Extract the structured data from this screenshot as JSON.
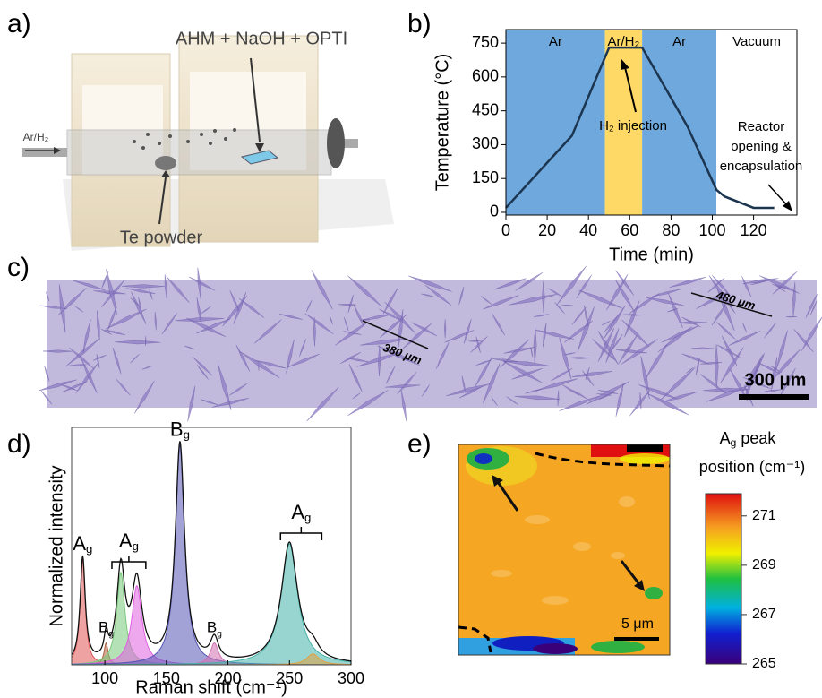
{
  "panel_labels": [
    "a)",
    "b)",
    "c)",
    "d)",
    "e)"
  ],
  "panel_a": {
    "top_label": "AHM + NaOH + OPTI",
    "gas_label": "Ar/H₂",
    "powder_label": "Te powder"
  },
  "panel_c": {
    "scale_labels": [
      "380 μm",
      "480 μm",
      "300 μm"
    ]
  },
  "panel_e": {
    "title_main": "A",
    "title_sub": "g",
    "title_rest": " peak",
    "title_line2": "position (cm⁻¹)",
    "colorbar_lim": [
      265,
      271.9
    ],
    "colorbar_ticks": [
      265,
      267,
      269,
      271
    ],
    "scale_label": "5 μm"
  },
  "chart_data": [
    {
      "type": "line",
      "xlabel": "Time (min)",
      "ylabel": "Temperature (°C)",
      "xlim": [
        0,
        141
      ],
      "ylim": [
        -12,
        810
      ],
      "xticks": [
        0,
        20,
        40,
        60,
        80,
        100,
        120
      ],
      "yticks": [
        0,
        150,
        300,
        450,
        600,
        750
      ],
      "regions": [
        {
          "label": "Ar",
          "start": 0,
          "end": 48,
          "color": "#6fa8dc"
        },
        {
          "label": "Ar/H₂",
          "start": 48,
          "end": 66,
          "color": "#ffd966"
        },
        {
          "label": "Ar",
          "start": 66,
          "end": 102,
          "color": "#6fa8dc"
        },
        {
          "label": "Vacuum",
          "start": 102,
          "end": 141,
          "color": "#ffffff"
        }
      ],
      "series": [
        {
          "color": "#1c3550",
          "x": [
            0,
            32,
            50,
            66,
            88,
            102,
            106,
            120,
            130
          ],
          "values": [
            20,
            340,
            730,
            730,
            380,
            100,
            70,
            20,
            20
          ]
        }
      ],
      "annotation_injection": "H₂ injection",
      "annotation_reactor": [
        "Reactor",
        "opening &",
        "encapsulation"
      ]
    },
    {
      "type": "peaks",
      "xlabel": "Raman shift (cm⁻¹)",
      "ylabel": "Normalized intensity",
      "xlim": [
        73,
        300
      ],
      "ylim": [
        0,
        1.08
      ],
      "xticks": [
        100,
        150,
        200,
        250,
        300
      ],
      "peaks": [
        {
          "center": 82,
          "height": 0.48,
          "width": 2.5,
          "color": "#e05555"
        },
        {
          "center": 101,
          "height": 0.1,
          "width": 2,
          "color": "#b06040"
        },
        {
          "center": 113,
          "height": 0.42,
          "width": 4,
          "color": "#79c97c"
        },
        {
          "center": 126,
          "height": 0.36,
          "width": 5,
          "color": "#e060e0"
        },
        {
          "center": 161,
          "height": 1.0,
          "width": 4.5,
          "color": "#5555b5"
        },
        {
          "center": 189,
          "height": 0.1,
          "width": 4,
          "color": "#d070b0"
        },
        {
          "center": 250,
          "height": 0.55,
          "width": 8,
          "color": "#45b3aa"
        },
        {
          "center": 269,
          "height": 0.05,
          "width": 6,
          "color": "#e0a040"
        }
      ],
      "peak_labels": [
        {
          "main": "A",
          "sub": "g",
          "peaks": [
            0
          ]
        },
        {
          "main": "B",
          "sub": "g",
          "peaks": [
            1
          ]
        },
        {
          "main": "A",
          "sub": "g",
          "peaks": [
            2,
            3
          ]
        },
        {
          "main": "B",
          "sub": "g",
          "peaks": [
            4
          ]
        },
        {
          "main": "B",
          "sub": "g",
          "peaks": [
            5
          ]
        },
        {
          "main": "A",
          "sub": "g",
          "peaks": [
            6,
            7
          ]
        }
      ]
    }
  ]
}
